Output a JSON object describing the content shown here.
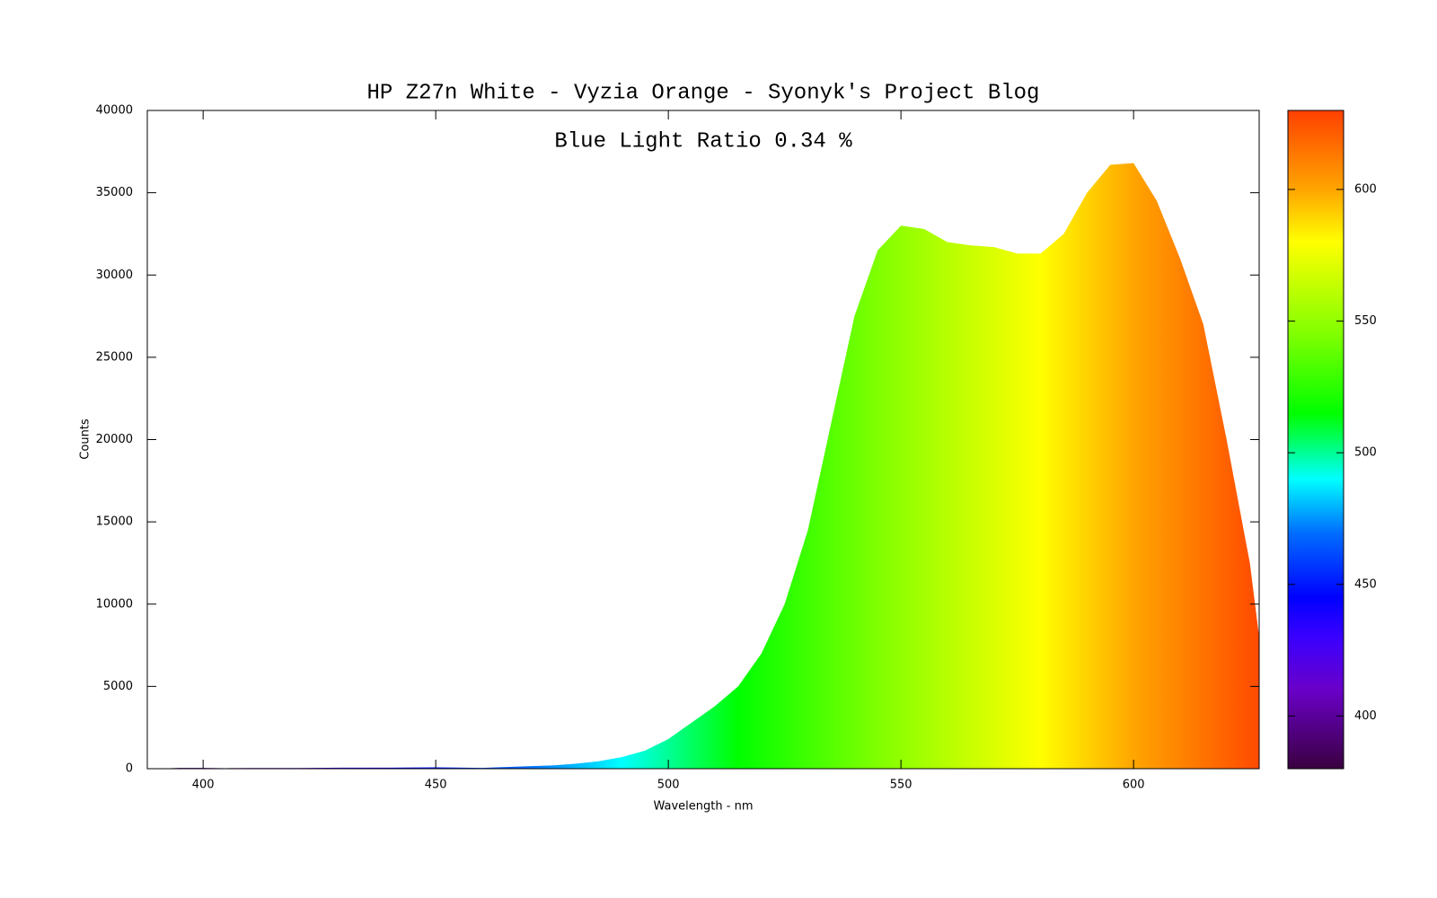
{
  "chart_data": {
    "type": "area",
    "title": "HP Z27n White - Vyzia Orange - Syonyk's Project Blog",
    "annotation": "Blue Light Ratio 0.34 %",
    "x_label": "Wavelength - nm",
    "y_label": "Counts",
    "x": [
      390,
      395,
      400,
      405,
      410,
      420,
      430,
      440,
      450,
      460,
      470,
      475,
      480,
      485,
      490,
      495,
      500,
      505,
      510,
      515,
      520,
      525,
      530,
      535,
      540,
      545,
      550,
      555,
      560,
      565,
      570,
      575,
      580,
      585,
      590,
      595,
      600,
      605,
      610,
      615,
      620,
      625,
      627
    ],
    "values": [
      0,
      50,
      50,
      30,
      40,
      40,
      60,
      60,
      80,
      50,
      150,
      200,
      300,
      450,
      700,
      1100,
      1800,
      2800,
      3800,
      5000,
      7000,
      10000,
      14500,
      21000,
      27500,
      31500,
      33000,
      32800,
      32000,
      31800,
      31700,
      31300,
      31300,
      32500,
      35000,
      36700,
      36800,
      34500,
      31000,
      27000,
      20000,
      12500,
      8000
    ],
    "xlim": [
      388,
      627
    ],
    "ylim": [
      0,
      40000
    ],
    "xticks": [
      400,
      450,
      500,
      550,
      600
    ],
    "yticks": [
      0,
      5000,
      10000,
      15000,
      20000,
      25000,
      30000,
      35000,
      40000
    ],
    "colorbar_lim": [
      380,
      630
    ],
    "colorbar_ticks": [
      400,
      450,
      500,
      550,
      600
    ],
    "colormap": [
      {
        "value": 380,
        "color": "#3a0040"
      },
      {
        "value": 410,
        "color": "#6a00c8"
      },
      {
        "value": 430,
        "color": "#3a00ff"
      },
      {
        "value": 445,
        "color": "#0000ff"
      },
      {
        "value": 470,
        "color": "#0070ff"
      },
      {
        "value": 490,
        "color": "#00ffff"
      },
      {
        "value": 505,
        "color": "#00ff60"
      },
      {
        "value": 515,
        "color": "#00ff00"
      },
      {
        "value": 545,
        "color": "#80ff00"
      },
      {
        "value": 580,
        "color": "#ffff00"
      },
      {
        "value": 600,
        "color": "#ffa500"
      },
      {
        "value": 630,
        "color": "#ff4000"
      }
    ]
  }
}
